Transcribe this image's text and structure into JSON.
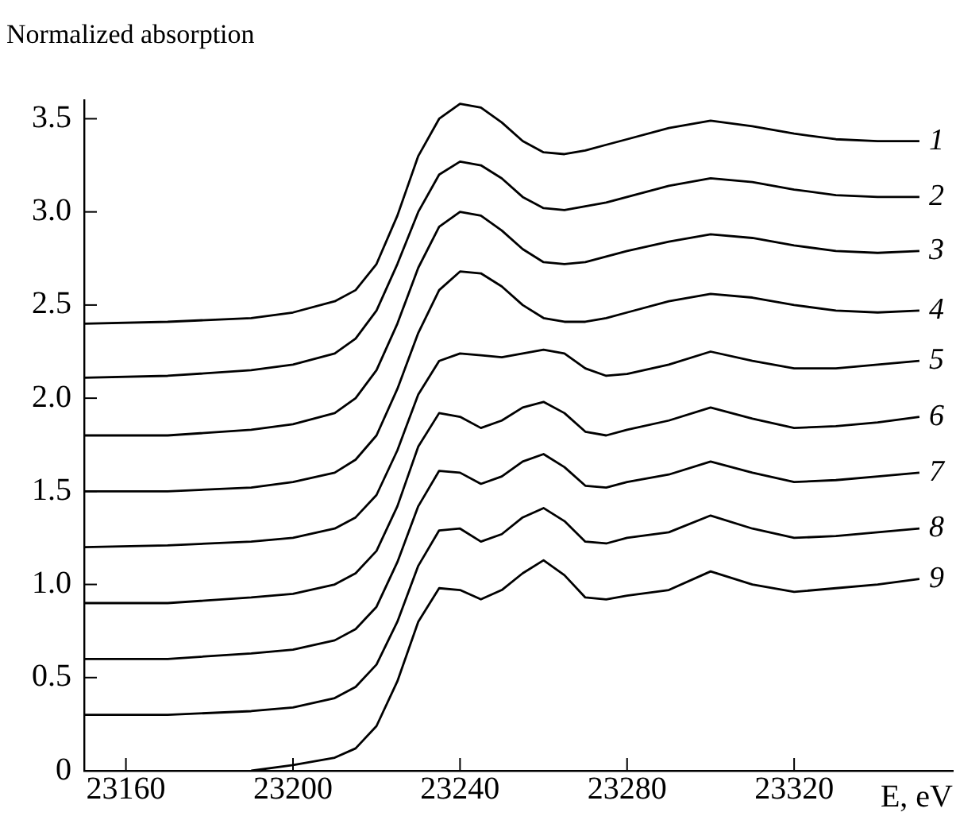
{
  "chart_data": {
    "type": "line",
    "ylabel": "Normalized absorption",
    "xlabel": "E, eV",
    "x": [
      23150,
      23170,
      23190,
      23200,
      23210,
      23215,
      23220,
      23225,
      23230,
      23235,
      23240,
      23245,
      23250,
      23255,
      23260,
      23265,
      23270,
      23275,
      23280,
      23290,
      23300,
      23310,
      23320,
      23330,
      23340,
      23350
    ],
    "xlim": [
      23150,
      23358
    ],
    "xticks": [
      23160,
      23200,
      23240,
      23280,
      23320
    ],
    "ylim": [
      0,
      3.6
    ],
    "yticks": [
      0,
      0.5,
      {
        "value": 1,
        "label": "1.0"
      },
      1.5,
      {
        "value": 2,
        "label": "2.0"
      },
      2.5,
      {
        "value": 3,
        "label": "3.0"
      },
      3.5
    ],
    "grid": false,
    "legend": false,
    "marker": "none",
    "line_style": "solid",
    "series": [
      {
        "name": "1",
        "color": "#000000",
        "values": [
          2.4,
          2.41,
          2.43,
          2.46,
          2.52,
          2.58,
          2.72,
          2.98,
          3.3,
          3.5,
          3.58,
          3.56,
          3.48,
          3.38,
          3.32,
          3.31,
          3.33,
          3.36,
          3.39,
          3.45,
          3.49,
          3.46,
          3.42,
          3.39,
          3.38,
          3.38
        ]
      },
      {
        "name": "2",
        "color": "#000000",
        "values": [
          2.11,
          2.12,
          2.15,
          2.18,
          2.24,
          2.32,
          2.47,
          2.72,
          3.0,
          3.2,
          3.27,
          3.25,
          3.18,
          3.08,
          3.02,
          3.01,
          3.03,
          3.05,
          3.08,
          3.14,
          3.18,
          3.16,
          3.12,
          3.09,
          3.08,
          3.08
        ]
      },
      {
        "name": "3",
        "color": "#000000",
        "values": [
          1.8,
          1.8,
          1.83,
          1.86,
          1.92,
          2.0,
          2.15,
          2.4,
          2.7,
          2.92,
          3.0,
          2.98,
          2.9,
          2.8,
          2.73,
          2.72,
          2.73,
          2.76,
          2.79,
          2.84,
          2.88,
          2.86,
          2.82,
          2.79,
          2.78,
          2.79
        ]
      },
      {
        "name": "4",
        "color": "#000000",
        "values": [
          1.5,
          1.5,
          1.52,
          1.55,
          1.6,
          1.67,
          1.8,
          2.05,
          2.35,
          2.58,
          2.68,
          2.67,
          2.6,
          2.5,
          2.43,
          2.41,
          2.41,
          2.43,
          2.46,
          2.52,
          2.56,
          2.54,
          2.5,
          2.47,
          2.46,
          2.47
        ]
      },
      {
        "name": "5",
        "color": "#000000",
        "values": [
          1.2,
          1.21,
          1.23,
          1.25,
          1.3,
          1.36,
          1.48,
          1.72,
          2.02,
          2.2,
          2.24,
          2.23,
          2.22,
          2.24,
          2.26,
          2.24,
          2.16,
          2.12,
          2.13,
          2.18,
          2.25,
          2.2,
          2.16,
          2.16,
          2.18,
          2.2
        ]
      },
      {
        "name": "6",
        "color": "#000000",
        "values": [
          0.9,
          0.9,
          0.93,
          0.95,
          1.0,
          1.06,
          1.18,
          1.42,
          1.74,
          1.92,
          1.9,
          1.84,
          1.88,
          1.95,
          1.98,
          1.92,
          1.82,
          1.8,
          1.83,
          1.88,
          1.95,
          1.89,
          1.84,
          1.85,
          1.87,
          1.9
        ]
      },
      {
        "name": "7",
        "color": "#000000",
        "values": [
          0.6,
          0.6,
          0.63,
          0.65,
          0.7,
          0.76,
          0.88,
          1.12,
          1.42,
          1.61,
          1.6,
          1.54,
          1.58,
          1.66,
          1.7,
          1.63,
          1.53,
          1.52,
          1.55,
          1.59,
          1.66,
          1.6,
          1.55,
          1.56,
          1.58,
          1.6
        ]
      },
      {
        "name": "8",
        "color": "#000000",
        "values": [
          0.3,
          0.3,
          0.32,
          0.34,
          0.39,
          0.45,
          0.57,
          0.8,
          1.1,
          1.29,
          1.3,
          1.23,
          1.27,
          1.36,
          1.41,
          1.34,
          1.23,
          1.22,
          1.25,
          1.28,
          1.37,
          1.3,
          1.25,
          1.26,
          1.28,
          1.3
        ]
      },
      {
        "name": "9",
        "color": "#000000",
        "values": [
          null,
          null,
          0.0,
          0.03,
          0.07,
          0.12,
          0.24,
          0.48,
          0.8,
          0.98,
          0.97,
          0.92,
          0.97,
          1.06,
          1.13,
          1.05,
          0.93,
          0.92,
          0.94,
          0.97,
          1.07,
          1.0,
          0.96,
          0.98,
          1.0,
          1.03
        ]
      }
    ]
  }
}
